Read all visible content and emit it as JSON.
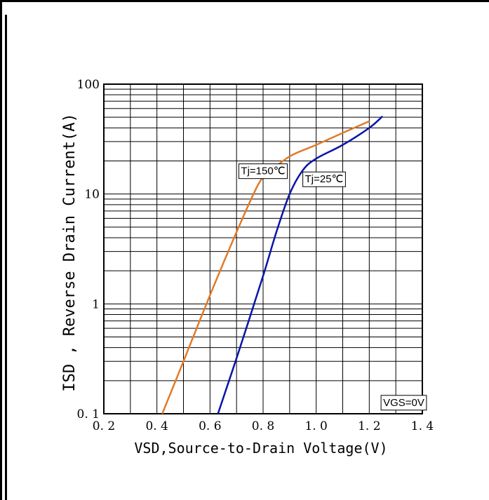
{
  "chart_data": {
    "type": "line",
    "title": "",
    "xlabel": "VSD,Source-to-Drain Voltage(V)",
    "ylabel": "ISD , Reverse Drain Current(A)",
    "xlim": [
      0.2,
      1.4
    ],
    "ylim": [
      0.1,
      100
    ],
    "y_scale": "log",
    "grid": true,
    "x_tick_labels": [
      "0. 2",
      "0. 4",
      "0. 6",
      "0. 8",
      "1. 0",
      "1. 2",
      "1. 4"
    ],
    "x_ticks": [
      0.2,
      0.4,
      0.6,
      0.8,
      1.0,
      1.2,
      1.4
    ],
    "y_tick_labels": [
      "0. 1",
      "1",
      "10",
      "100"
    ],
    "y_ticks": [
      0.1,
      1,
      10,
      100
    ],
    "series": [
      {
        "name": "Tj=150℃",
        "color": "#e07b2a",
        "x": [
          0.42,
          0.5,
          0.6,
          0.7,
          0.78,
          0.82,
          0.9,
          1.0,
          1.1,
          1.2
        ],
        "y": [
          0.1,
          0.3,
          1.2,
          4.5,
          12,
          15.5,
          22,
          28,
          36,
          46
        ]
      },
      {
        "name": "Tj=25℃",
        "color": "#0a14a8",
        "x": [
          0.63,
          0.7,
          0.8,
          0.85,
          0.9,
          0.95,
          1.0,
          1.1,
          1.2,
          1.25
        ],
        "y": [
          0.1,
          0.32,
          1.8,
          4.5,
          10,
          16.5,
          21,
          28,
          40,
          51
        ]
      }
    ],
    "annotations": [
      {
        "text": "Tj=150℃",
        "x": 0.8,
        "y": 16
      },
      {
        "text": "Tj=25℃",
        "x": 1.03,
        "y": 13.5
      },
      {
        "text": "VGS=0V",
        "x": 1.33,
        "y": 0.125
      }
    ]
  }
}
